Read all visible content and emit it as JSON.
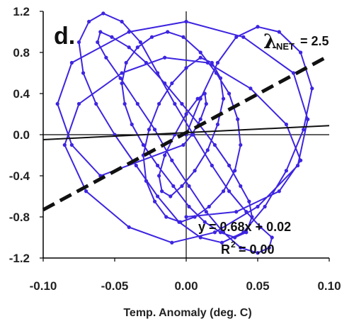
{
  "chart_data": {
    "type": "line",
    "title": "",
    "panel_label": "d.",
    "xlabel": "Temp.  Anomaly (deg. C)",
    "ylabel": "",
    "xlim": [
      -0.1,
      0.1
    ],
    "ylim": [
      -1.2,
      1.2
    ],
    "x_ticks": [
      -0.1,
      -0.05,
      0.0,
      0.05,
      0.1
    ],
    "x_tick_labels": [
      "-0.10",
      "-0.05",
      "0.00",
      "0.05",
      "0.10"
    ],
    "y_ticks": [
      1.2,
      0.8,
      0.4,
      0.0,
      -0.4,
      -0.8,
      -1.2
    ],
    "y_tick_labels": [
      "1.2",
      "0.8",
      "0.4",
      "0.0",
      "-0.4",
      "-0.8",
      "-1.2"
    ],
    "grid": false,
    "series": [
      {
        "role": "data",
        "color": "#3d25e0",
        "style": "connected-markers",
        "x": [
          0.0,
          0.01,
          0.022,
          0.035,
          0.05,
          0.065,
          0.08,
          0.088,
          0.082,
          0.07,
          0.055,
          0.04,
          0.025,
          0.01,
          -0.005,
          -0.02,
          -0.035,
          -0.05,
          -0.063,
          -0.072,
          -0.075,
          -0.068,
          -0.058,
          -0.045,
          -0.032,
          -0.02,
          -0.008,
          0.005,
          0.018,
          0.03,
          0.042,
          0.052,
          0.06,
          0.058,
          0.05,
          0.038,
          0.026,
          0.014,
          0.002,
          -0.01,
          -0.022,
          -0.034,
          -0.046,
          -0.056,
          -0.062,
          -0.06,
          -0.052,
          -0.04,
          -0.028,
          -0.015,
          -0.003,
          0.009,
          0.02,
          0.03,
          0.038,
          0.044,
          0.046,
          0.042,
          0.034,
          0.024,
          0.013,
          0.002,
          -0.009,
          -0.02,
          -0.03,
          -0.038,
          -0.043,
          -0.045,
          -0.042,
          -0.034,
          -0.024,
          -0.013,
          -0.002,
          0.01,
          0.021,
          0.03,
          0.036,
          0.038,
          0.034,
          0.026,
          0.016,
          0.006,
          -0.004,
          -0.014,
          -0.022,
          -0.028,
          -0.03,
          -0.026,
          -0.019,
          -0.01,
          0.0,
          0.01,
          0.018,
          0.024,
          0.026,
          0.022,
          0.015,
          0.006,
          -0.003,
          -0.011,
          -0.017,
          -0.019,
          -0.015,
          -0.008,
          0.0,
          0.008,
          0.013,
          0.014,
          0.01,
          0.004,
          -0.002,
          -0.06,
          -0.08,
          -0.09,
          -0.08,
          -0.04,
          0.0,
          0.04,
          0.075,
          0.085,
          0.078,
          0.05,
          0.02,
          -0.01,
          -0.04,
          -0.07,
          -0.085,
          -0.075,
          -0.045,
          -0.015,
          0.015,
          0.045,
          0.07,
          0.08,
          0.065,
          0.035,
          0.0
        ],
        "y": [
          0.0,
          0.35,
          0.7,
          0.95,
          1.05,
          1.0,
          0.8,
          0.45,
          0.05,
          -0.35,
          -0.7,
          -0.95,
          -1.05,
          -1.0,
          -0.85,
          -0.6,
          -0.3,
          0.0,
          0.3,
          0.6,
          0.9,
          1.1,
          1.18,
          1.1,
          0.9,
          0.6,
          0.3,
          0.0,
          -0.3,
          -0.55,
          -0.75,
          -0.9,
          -1.0,
          -1.1,
          -1.15,
          -1.1,
          -0.95,
          -0.75,
          -0.5,
          -0.25,
          0.05,
          0.3,
          0.55,
          0.75,
          0.9,
          1.0,
          0.95,
          0.85,
          0.7,
          0.5,
          0.3,
          0.1,
          -0.1,
          -0.3,
          -0.5,
          -0.65,
          -0.8,
          -0.95,
          -1.0,
          -0.95,
          -0.85,
          -0.7,
          -0.5,
          -0.3,
          -0.1,
          0.1,
          0.3,
          0.5,
          0.7,
          0.85,
          0.95,
          1.0,
          0.95,
          0.8,
          0.6,
          0.4,
          0.15,
          -0.1,
          -0.35,
          -0.55,
          -0.7,
          -0.8,
          -0.85,
          -0.8,
          -0.65,
          -0.45,
          -0.2,
          0.05,
          0.3,
          0.5,
          0.65,
          0.75,
          0.7,
          0.55,
          0.35,
          0.1,
          -0.15,
          -0.35,
          -0.5,
          -0.6,
          -0.55,
          -0.4,
          -0.2,
          0.0,
          0.2,
          0.35,
          0.4,
          0.3,
          0.15,
          0.0,
          -0.1,
          -0.4,
          -0.1,
          0.3,
          0.7,
          1.0,
          1.1,
          0.95,
          0.6,
          0.15,
          -0.3,
          -0.7,
          -0.95,
          -1.05,
          -0.9,
          -0.55,
          -0.1,
          0.3,
          0.6,
          0.75,
          0.7,
          0.45,
          0.1,
          -0.25,
          -0.55,
          -0.75,
          -0.8
        ]
      },
      {
        "role": "fit",
        "color": "#111111",
        "style": "solid",
        "x": [
          -0.1,
          0.1
        ],
        "y": [
          -0.048,
          0.088
        ]
      },
      {
        "role": "reference",
        "color": "#111111",
        "style": "dashed",
        "x": [
          -0.1,
          0.1
        ],
        "y": [
          -0.73,
          0.77
        ]
      }
    ],
    "annotations": {
      "lambda_symbol": "λ",
      "lambda_subscript": "NET",
      "lambda_value": "= 2.5",
      "equation": "y = 0.68x + 0.02",
      "r2_prefix": "R",
      "r2_sup": "2",
      "r2_value": " = 0.00"
    }
  }
}
